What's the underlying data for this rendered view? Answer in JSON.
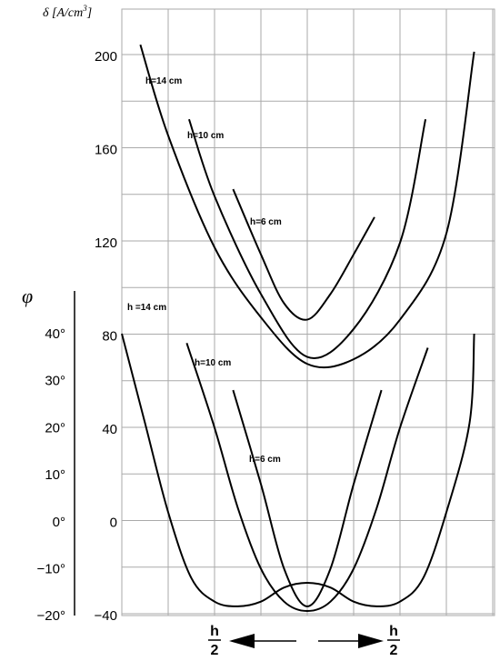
{
  "chart_data": {
    "type": "line",
    "title": "",
    "y_axis_left": {
      "label": "δ [A/cm³]",
      "label_prefix": "δ ",
      "label_unit": "[A/cm",
      "label_sup": "3",
      "label_close": "]",
      "ticks": [
        "200",
        "160",
        "120",
        "80",
        "40",
        "0",
        "−40"
      ],
      "range": [
        -40,
        200
      ]
    },
    "y_axis_phi": {
      "label": "φ",
      "ticks": [
        "40°",
        "30°",
        "20°",
        "10°",
        "0°",
        "−10°",
        "−20°"
      ],
      "range": [
        -20,
        40
      ]
    },
    "x_axis": {
      "left_label": {
        "numerator": "h",
        "denominator": "2"
      },
      "right_label": {
        "numerator": "h",
        "denominator": "2"
      },
      "x_range": [
        -10,
        10
      ],
      "grid_x": [
        -10,
        -8,
        -6,
        -4,
        -2,
        0,
        2,
        4,
        6,
        8,
        10,
        12
      ],
      "grid_on": true
    },
    "series_delta": [
      {
        "name": "h=14 cm",
        "points": [
          [
            -7.2,
            205
          ],
          [
            -6,
            166
          ],
          [
            -4,
            118
          ],
          [
            -2,
            88
          ],
          [
            0,
            68
          ],
          [
            2,
            70
          ],
          [
            4,
            87
          ],
          [
            6,
            124
          ],
          [
            7.2,
            202
          ]
        ]
      },
      {
        "name": "h=10 cm",
        "points": [
          [
            -5.1,
            173
          ],
          [
            -4,
            140
          ],
          [
            -2,
            98
          ],
          [
            0,
            71
          ],
          [
            2,
            83
          ],
          [
            4,
            120
          ],
          [
            5.1,
            173
          ]
        ]
      },
      {
        "name": "h=6 cm",
        "points": [
          [
            -3.2,
            143
          ],
          [
            -2,
            115
          ],
          [
            -1,
            94
          ],
          [
            0,
            87
          ],
          [
            1,
            98
          ],
          [
            2,
            115
          ],
          [
            2.9,
            131
          ]
        ]
      }
    ],
    "series_phi": [
      {
        "name": "h =14 cm",
        "points": [
          [
            -8,
            40
          ],
          [
            -7,
            21
          ],
          [
            -6,
            2
          ],
          [
            -5,
            -12
          ],
          [
            -4,
            -17
          ],
          [
            -3,
            -18
          ],
          [
            -2,
            -17
          ],
          [
            -1,
            -14
          ],
          [
            0,
            -13
          ],
          [
            1,
            -14
          ],
          [
            2,
            -17
          ],
          [
            3,
            -18
          ],
          [
            4,
            -17
          ],
          [
            5,
            -12
          ],
          [
            6,
            2
          ],
          [
            7,
            21
          ],
          [
            7.2,
            40
          ]
        ]
      },
      {
        "name": "h=10 cm",
        "points": [
          [
            -5.2,
            38
          ],
          [
            -4,
            20
          ],
          [
            -3,
            3
          ],
          [
            -2,
            -10
          ],
          [
            -1,
            -17
          ],
          [
            0,
            -19
          ],
          [
            1,
            -17
          ],
          [
            2,
            -10
          ],
          [
            3,
            3
          ],
          [
            4,
            20
          ],
          [
            5.2,
            37
          ]
        ]
      },
      {
        "name": "h=6 cm",
        "points": [
          [
            -3.2,
            28
          ],
          [
            -2,
            8
          ],
          [
            -1,
            -10
          ],
          [
            0,
            -18
          ],
          [
            1,
            -10
          ],
          [
            2,
            8
          ],
          [
            3.2,
            28
          ]
        ]
      }
    ]
  }
}
